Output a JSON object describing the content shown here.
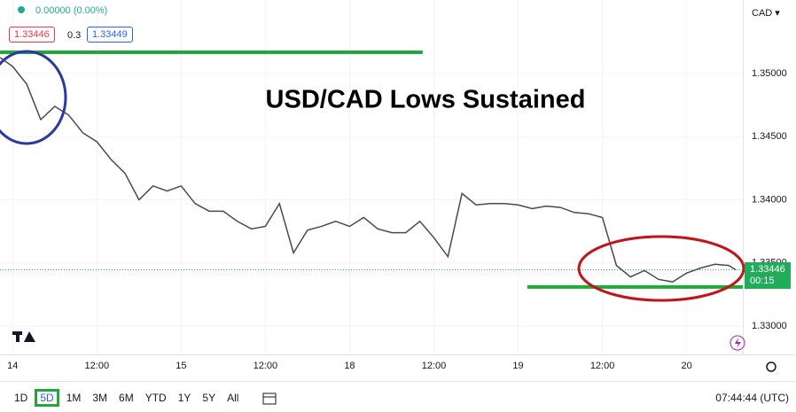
{
  "chart_data": {
    "type": "line",
    "title": "USD/CAD Lows Sustained",
    "x": [
      -1.8,
      0,
      2,
      4,
      6,
      8,
      10,
      12,
      14,
      16,
      18,
      20,
      22,
      24,
      26,
      28,
      30,
      32,
      34,
      36,
      38,
      40,
      42,
      44,
      46,
      48,
      50,
      52,
      54,
      56,
      58,
      60,
      62,
      64,
      66,
      68,
      70,
      72,
      74,
      76,
      78,
      80,
      82,
      84,
      86,
      88,
      90,
      92,
      94,
      96,
      98,
      100,
      102,
      103
    ],
    "values": [
      1.35126,
      1.35056,
      1.34916,
      1.34635,
      1.3474,
      1.3467,
      1.3453,
      1.3446,
      1.3432,
      1.3421,
      1.34,
      1.3411,
      1.3407,
      1.3411,
      1.3397,
      1.3391,
      1.3391,
      1.3383,
      1.3377,
      1.3379,
      1.3397,
      1.3358,
      1.3376,
      1.3379,
      1.3383,
      1.3379,
      1.3386,
      1.3377,
      1.3374,
      1.3374,
      1.3383,
      1.337,
      1.3355,
      1.3405,
      1.3396,
      1.3397,
      1.3397,
      1.3396,
      1.3393,
      1.3395,
      1.3394,
      1.339,
      1.3389,
      1.3386,
      1.3348,
      1.3339,
      1.3344,
      1.3337,
      1.3335,
      1.3342,
      1.3346,
      1.3349,
      1.3348,
      1.33446
    ],
    "color": "#4a4a4a",
    "xlim": [
      -1.8,
      104
    ],
    "xticks": [
      {
        "value": 0,
        "label": "14"
      },
      {
        "value": 12,
        "label": "12:00"
      },
      {
        "value": 24,
        "label": "15"
      },
      {
        "value": 36,
        "label": "12:00"
      },
      {
        "value": 48,
        "label": "18"
      },
      {
        "value": 60,
        "label": "12:00"
      },
      {
        "value": 72,
        "label": "19"
      },
      {
        "value": 84,
        "label": "12:00"
      },
      {
        "value": 96,
        "label": "20"
      }
    ],
    "ylim": [
      1.32776,
      1.35582
    ],
    "yticks": [
      {
        "value": 1.35,
        "label": "1.35000"
      },
      {
        "value": 1.345,
        "label": "1.34500"
      },
      {
        "value": 1.34,
        "label": "1.34000"
      },
      {
        "value": 1.335,
        "label": "1.33500"
      },
      {
        "value": 1.33,
        "label": "1.33000"
      }
    ],
    "grid": true,
    "levels": [
      {
        "value": 1.35168,
        "x": [
          -1.8,
          58.4
        ],
        "color": "#22a83a"
      },
      {
        "value": 1.3331,
        "x": [
          73.3,
          104
        ],
        "color": "#22a83a"
      }
    ],
    "last_price": 1.33446,
    "countdown": "00:15",
    "change": "0.00000 (0.00%)",
    "bid": 1.33446,
    "spread": 0.3,
    "ask": 1.33449,
    "currency": "CAD"
  },
  "toolbar": {
    "timeframes": [
      "1D",
      "5D",
      "1M",
      "3M",
      "6M",
      "YTD",
      "1Y",
      "5Y",
      "All"
    ],
    "clock": "07:44:44 (UTC)"
  }
}
